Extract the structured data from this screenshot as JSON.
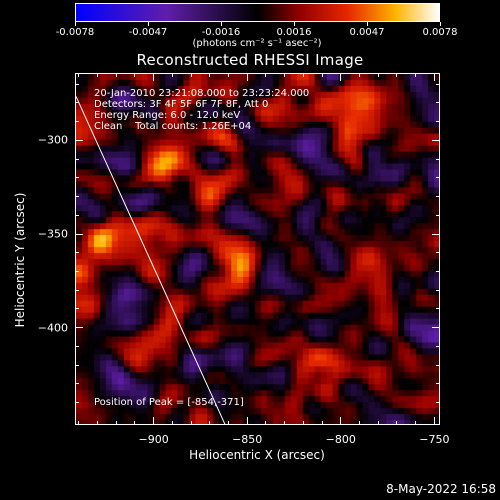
{
  "colorbar": {
    "tick_labels": [
      "-0.0078",
      "-0.0047",
      "-0.0016",
      "0.0016",
      "0.0047",
      "0.0078"
    ],
    "units": "(photons cm⁻² s⁻¹ asec⁻²)"
  },
  "chart_data": {
    "type": "heatmap",
    "title": "Reconstructed RHESSI Image",
    "xlabel": "Heliocentric X (arcsec)",
    "ylabel": "Heliocentric Y (arcsec)",
    "xlim": [
      -942,
      -747
    ],
    "ylim": [
      -452,
      -264
    ],
    "x_ticks": [
      -900,
      -850,
      -800,
      -750
    ],
    "y_ticks": [
      -300,
      -350,
      -400
    ],
    "zlim": [
      -0.0078,
      0.0078
    ],
    "peak": {
      "x": -854,
      "y": -371
    },
    "limb_line": [
      [
        -942,
        -276
      ],
      [
        -862,
        -452
      ]
    ],
    "bright_regions": [
      {
        "x": -854,
        "y": -371,
        "value": 0.0078
      },
      {
        "x": -888,
        "y": -305,
        "value": 0.004
      },
      {
        "x": -793,
        "y": -284,
        "value": 0.0045
      },
      {
        "x": -780,
        "y": -365,
        "value": 0.003
      },
      {
        "x": -810,
        "y": -420,
        "value": 0.0035
      },
      {
        "x": -900,
        "y": -415,
        "value": 0.0025
      },
      {
        "x": -925,
        "y": -355,
        "value": 0.0025
      }
    ]
  },
  "info": {
    "time_range": "20-Jan-2010 23:21:08.000 to 23:23:24.000",
    "detectors": "Detectors: 3F 4F 5F 6F 7F 8F, Att 0",
    "energy": "Energy Range: 6.0 - 12.0 keV",
    "method": "Clean    Total counts: 1.26E+04",
    "peak_label": "Position of Peak = [-854,-371]"
  },
  "footer": {
    "date": "8-May-2022 16:58"
  }
}
